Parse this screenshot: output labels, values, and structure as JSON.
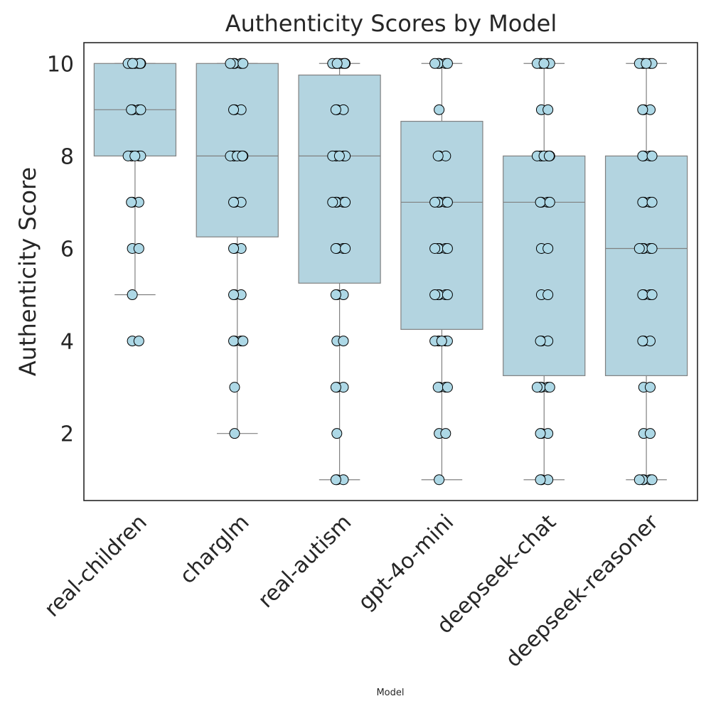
{
  "chart_data": {
    "type": "box",
    "title": "Authenticity Scores by Model",
    "xlabel": "Model",
    "ylabel": "Authenticity Score",
    "ylim": [
      0.55,
      10.45
    ],
    "yticks": [
      2,
      4,
      6,
      8,
      10
    ],
    "grid": false,
    "colors": {
      "box": "#b3d4e0",
      "point": "#add8e6",
      "line": "#808080",
      "frame": "#262626"
    },
    "categories": [
      "real-children",
      "charglm",
      "real-autism",
      "gpt-4o-mini",
      "deepseek-chat",
      "deepseek-reasoner"
    ],
    "boxes": [
      {
        "category": "real-children",
        "q1": 8,
        "median": 9,
        "q3": 10,
        "whisker_low": 5,
        "whisker_high": 10,
        "points": [
          10,
          10,
          10,
          10,
          10,
          10,
          10,
          10,
          9,
          9,
          9,
          9,
          8,
          8,
          8,
          8,
          8,
          8,
          7,
          7,
          7,
          6,
          6,
          5,
          4,
          4
        ]
      },
      {
        "category": "charglm",
        "q1": 6.25,
        "median": 8,
        "q3": 10,
        "whisker_low": 2,
        "whisker_high": 10,
        "points": [
          10,
          10,
          10,
          10,
          10,
          9,
          9,
          9,
          8,
          8,
          8,
          8,
          8,
          8,
          8,
          7,
          7,
          7,
          6,
          6,
          6,
          5,
          5,
          5,
          4,
          4,
          4,
          4,
          3,
          2
        ]
      },
      {
        "category": "real-autism",
        "q1": 5.25,
        "median": 8,
        "q3": 9.75,
        "whisker_low": 1,
        "whisker_high": 10,
        "points": [
          10,
          10,
          10,
          10,
          10,
          10,
          10,
          10,
          9,
          9,
          9,
          8,
          8,
          8,
          8,
          8,
          8,
          7,
          7,
          7,
          7,
          7,
          6,
          6,
          6,
          6,
          5,
          5,
          5,
          4,
          4,
          3,
          3,
          3,
          2,
          1,
          1,
          1
        ]
      },
      {
        "category": "gpt-4o-mini",
        "q1": 4.25,
        "median": 7,
        "q3": 8.75,
        "whisker_low": 1,
        "whisker_high": 10,
        "points": [
          10,
          10,
          10,
          10,
          10,
          9,
          8,
          8,
          8,
          7,
          7,
          7,
          7,
          7,
          6,
          6,
          6,
          6,
          6,
          5,
          5,
          5,
          5,
          5,
          4,
          4,
          4,
          4,
          4,
          4,
          3,
          3,
          3,
          3,
          2,
          2,
          1
        ]
      },
      {
        "category": "deepseek-chat",
        "q1": 3.25,
        "median": 7,
        "q3": 8,
        "whisker_low": 1,
        "whisker_high": 10,
        "points": [
          10,
          10,
          10,
          10,
          10,
          10,
          9,
          9,
          8,
          8,
          8,
          8,
          8,
          8,
          8,
          7,
          7,
          7,
          7,
          6,
          6,
          5,
          5,
          4,
          4,
          4,
          3,
          3,
          3,
          3,
          3,
          2,
          2,
          2,
          1,
          1,
          1
        ]
      },
      {
        "category": "deepseek-reasoner",
        "q1": 3.25,
        "median": 6,
        "q3": 8,
        "whisker_low": 1,
        "whisker_high": 10,
        "points": [
          10,
          10,
          10,
          10,
          10,
          10,
          9,
          9,
          9,
          8,
          8,
          8,
          8,
          7,
          7,
          7,
          7,
          6,
          6,
          6,
          6,
          6,
          5,
          5,
          5,
          5,
          4,
          4,
          4,
          3,
          3,
          2,
          2,
          1,
          1,
          1,
          1,
          1
        ]
      }
    ]
  }
}
